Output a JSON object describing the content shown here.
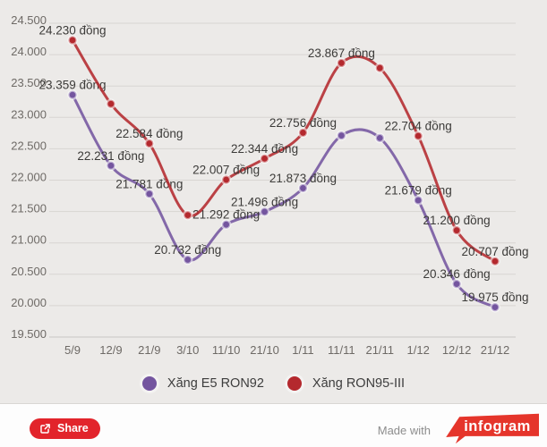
{
  "chart_data": {
    "type": "line",
    "categories": [
      "5/9",
      "12/9",
      "21/9",
      "3/10",
      "11/10",
      "21/10",
      "1/11",
      "11/11",
      "21/11",
      "1/12",
      "12/12",
      "21/12"
    ],
    "series": [
      {
        "name": "Xăng E5 RON92",
        "color": "#74559F",
        "values": [
          23359,
          22231,
          21781,
          20732,
          21292,
          21496,
          21873,
          22711,
          22671,
          21679,
          20346,
          19975
        ],
        "point_labels": [
          "23.359 đồng",
          "22.231 đồng",
          "21.781 đồng",
          "20.732 đồng",
          "21.292 đồng",
          "21.496 đồng",
          "21.873 đồng",
          null,
          null,
          "21.679 đồng",
          "20.346 đồng",
          "19.975 đồng"
        ]
      },
      {
        "name": "Xăng RON95-III",
        "color": "#B4292E",
        "values": [
          24230,
          23215,
          22584,
          21443,
          22007,
          22344,
          22756,
          23867,
          23787,
          22704,
          21200,
          20707
        ],
        "point_labels": [
          "24.230 đồng",
          null,
          "22.584 đồng",
          null,
          "22.007 đồng",
          "22.344 đồng",
          "22.756 đồng",
          "23.867 đồng",
          null,
          "22.704 đồng",
          "21.200 đồng",
          "20.707 đồng"
        ]
      }
    ],
    "y_ticks": [
      {
        "value": 24500,
        "label": "24.500"
      },
      {
        "value": 24000,
        "label": "24.000"
      },
      {
        "value": 23500,
        "label": "23.500"
      },
      {
        "value": 23000,
        "label": "23.000"
      },
      {
        "value": 22500,
        "label": "22.500"
      },
      {
        "value": 22000,
        "label": "22.000"
      },
      {
        "value": 21500,
        "label": "21.500"
      },
      {
        "value": 21000,
        "label": "21.000"
      },
      {
        "value": 20500,
        "label": "20.500"
      },
      {
        "value": 20000,
        "label": "20.000"
      },
      {
        "value": 19500,
        "label": "19.500"
      }
    ],
    "ylim": [
      19500,
      24500
    ],
    "xlabel": "",
    "ylabel": "",
    "unit": "đồng",
    "grid": true,
    "legend_position": "bottom",
    "background": "#ECEAE8"
  },
  "legend": {
    "items": [
      {
        "label": "Xăng E5 RON92",
        "color": "#74559F"
      },
      {
        "label": "Xăng RON95-III",
        "color": "#B4292E"
      }
    ]
  },
  "footer": {
    "share_label": "Share",
    "share_button_color": "#E2242B",
    "made_with": "Made with",
    "brand": "infogram",
    "brand_color": "#E5352B"
  }
}
